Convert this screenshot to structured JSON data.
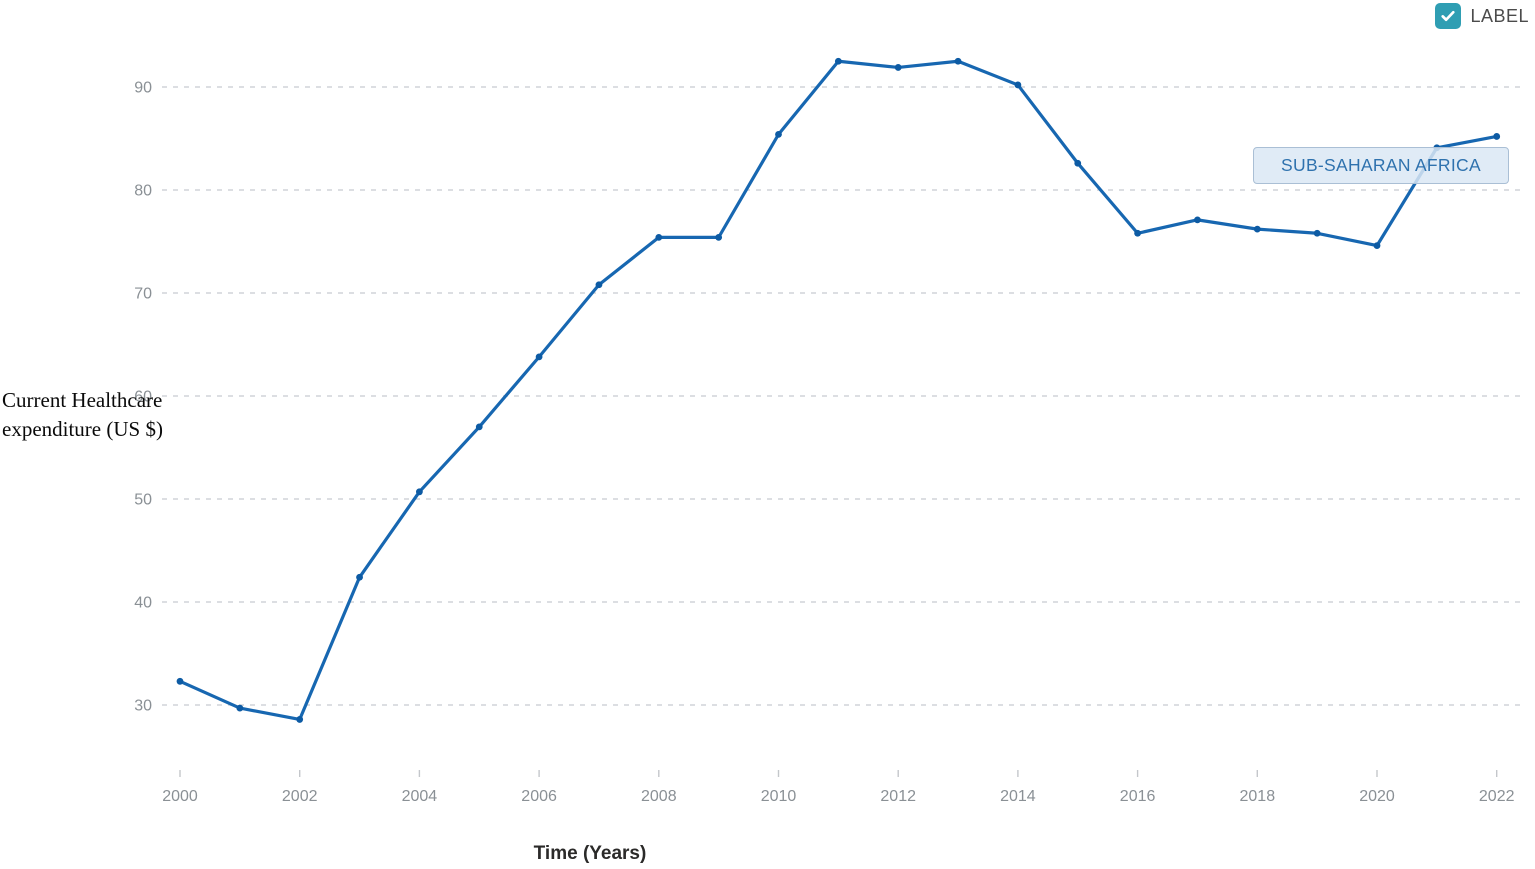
{
  "legend": {
    "label_checkbox": {
      "label": "LABEL",
      "checked": true,
      "color": "#2f9eb3"
    }
  },
  "series_label": "SUB-SAHARAN AFRICA",
  "chart_data": {
    "type": "line",
    "title": "",
    "xlabel": "Time (Years)",
    "ylabel": "Current Healthcare expenditure (US $)",
    "x": [
      2000,
      2001,
      2002,
      2003,
      2004,
      2005,
      2006,
      2007,
      2008,
      2009,
      2010,
      2011,
      2012,
      2013,
      2014,
      2015,
      2016,
      2017,
      2018,
      2019,
      2020,
      2021,
      2022
    ],
    "series": [
      {
        "name": "SUB-SAHARAN AFRICA",
        "values": [
          32.3,
          29.7,
          28.6,
          42.4,
          50.7,
          57.0,
          63.8,
          70.8,
          75.4,
          75.4,
          85.4,
          92.5,
          91.9,
          92.5,
          90.2,
          82.6,
          75.8,
          77.1,
          76.2,
          75.8,
          74.6,
          84.1,
          85.2
        ]
      }
    ],
    "yticks": [
      30,
      40,
      50,
      60,
      70,
      80,
      90
    ],
    "xticks": [
      2000,
      2002,
      2004,
      2006,
      2008,
      2010,
      2012,
      2014,
      2016,
      2018,
      2020,
      2022
    ],
    "ylim": [
      25,
      95
    ],
    "grid": "horizontal-dashed",
    "legend_position": "none",
    "colors": {
      "line": "#1767b1",
      "marker": "#0d5ba4",
      "grid": "#d0d4d9",
      "tick_text": "#8a9095",
      "tick_mark": "#c4c7cb"
    }
  }
}
